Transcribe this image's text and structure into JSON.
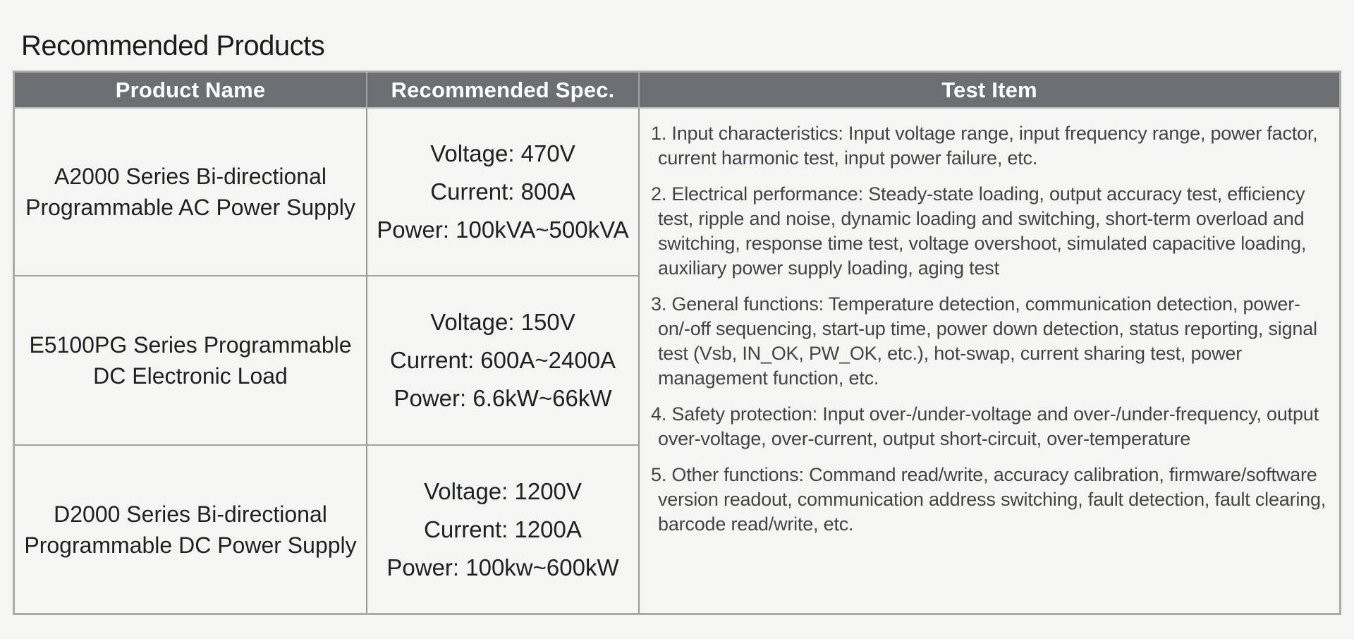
{
  "page": {
    "title": "Recommended Products"
  },
  "table": {
    "headers": [
      {
        "label": "Product Name"
      },
      {
        "label": "Recommended Spec."
      },
      {
        "label": "Test Item"
      }
    ],
    "rows": [
      {
        "product": "A2000 Series Bi-directional\nProgrammable AC Power Supply",
        "spec": "Voltage: 470V\nCurrent: 800A\nPower: 100kVA~500kVA"
      },
      {
        "product": "E5100PG Series Programmable\nDC Electronic Load",
        "spec": "Voltage: 150V\nCurrent: 600A~2400A\nPower: 6.6kW~66kW"
      },
      {
        "product": "D2000 Series Bi-directional\nProgrammable DC Power Supply",
        "spec": "Voltage: 1200V\nCurrent: 1200A\nPower: 100kw~600kW"
      }
    ],
    "test_items": [
      "1. Input characteristics: Input voltage range, input frequency range, power factor, current harmonic test, input power failure, etc.",
      "2. Electrical performance: Steady-state loading, output accuracy test, efficiency test, ripple and noise, dynamic loading and switching, short-term overload and switching, response time test, voltage overshoot, simulated capacitive loading, auxiliary power supply loading, aging test",
      "3. General functions: Temperature detection, communication detection, power-on/-off sequencing, start-up time, power down detection, status reporting, signal test (Vsb, IN_OK, PW_OK, etc.), hot-swap, current sharing test, power management function, etc.",
      "4. Safety protection: Input over-/under-voltage and over-/under-frequency, output over-voltage, over-current, output short-circuit, over-temperature",
      "5. Other functions: Command read/write, accuracy calibration, firmware/software version readout, communication address switching, fault detection, fault clearing, barcode read/write, etc."
    ],
    "colors": {
      "header_bg": "#6d6e71",
      "header_text": "#ffffff",
      "body_text": "#202124",
      "test_text": "#434447",
      "border": "#a2a3a5"
    }
  }
}
